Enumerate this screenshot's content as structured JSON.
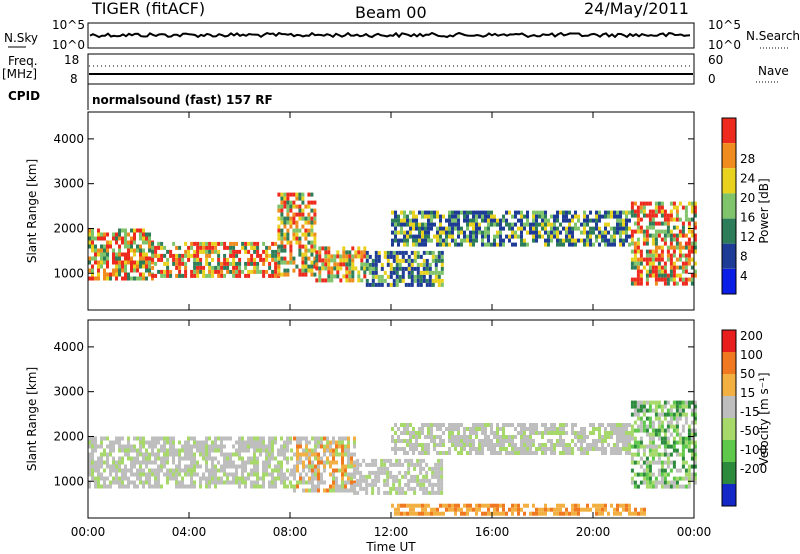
{
  "header": {
    "radar": "TIGER (fitACF)",
    "beam": "Beam 00",
    "date": "24/May/2011"
  },
  "top_panels": {
    "nsky_label": "N.Sky",
    "nsky_ticks": [
      "10^5",
      "10^0"
    ],
    "nsearch_label": "N.Search",
    "nsearch_ticks": [
      "10^5",
      "10^0"
    ],
    "freq_label": "Freq.",
    "freq_unit": "[MHz]",
    "freq_ticks": [
      "18",
      "8"
    ],
    "nave_label": "Nave",
    "nave_ticks": [
      "60",
      "0"
    ],
    "cpid_label": "CPID",
    "cpid_text": "normalsound (fast) 157 RF"
  },
  "chart_data": [
    {
      "type": "heatmap",
      "panel": "power",
      "ylabel": "Slant Range [km]",
      "y_ticks": [
        "1000",
        "2000",
        "3000",
        "4000"
      ],
      "ylim": [
        180,
        4600
      ],
      "x_ticks": [
        "00:00",
        "04:00",
        "08:00",
        "12:00",
        "16:00",
        "20:00",
        "00:00"
      ],
      "xlim": [
        0,
        24
      ],
      "colorbar": {
        "label": "Power [dB]",
        "ticks": [
          "4",
          "8",
          "12",
          "16",
          "20",
          "24",
          "28"
        ],
        "colors": [
          "#0a1ee6",
          "#1e3c96",
          "#2e7d5a",
          "#7fc46a",
          "#e9d21e",
          "#f08c1e",
          "#ee2a1e"
        ]
      },
      "regions": [
        {
          "t0": 0.0,
          "t1": 2.5,
          "r0": 900,
          "r1": 2000,
          "level": "high"
        },
        {
          "t0": 2.5,
          "t1": 7.5,
          "r0": 900,
          "r1": 1700,
          "level": "high"
        },
        {
          "t0": 7.5,
          "t1": 9.0,
          "r0": 1000,
          "r1": 2800,
          "level": "mid"
        },
        {
          "t0": 9.0,
          "t1": 11.0,
          "r0": 800,
          "r1": 1600,
          "level": "mid"
        },
        {
          "t0": 11.0,
          "t1": 14.0,
          "r0": 700,
          "r1": 1500,
          "level": "low"
        },
        {
          "t0": 12.0,
          "t1": 21.5,
          "r0": 1600,
          "r1": 2400,
          "level": "low"
        },
        {
          "t0": 21.5,
          "t1": 24.0,
          "r0": 800,
          "r1": 2600,
          "level": "high"
        }
      ]
    },
    {
      "type": "heatmap",
      "panel": "velocity",
      "ylabel": "Slant Range [km]",
      "y_ticks": [
        "1000",
        "2000",
        "3000",
        "4000"
      ],
      "ylim": [
        180,
        4600
      ],
      "x_ticks": [
        "00:00",
        "04:00",
        "08:00",
        "12:00",
        "16:00",
        "20:00",
        "00:00"
      ],
      "xlabel": "Time UT",
      "xlim": [
        0,
        24
      ],
      "colorbar": {
        "label": "Velocity [m s⁻¹]",
        "ticks": [
          "200",
          "100",
          "50",
          "15",
          "-15",
          "-50",
          "-100",
          "-200"
        ],
        "colors": [
          "#1428c8",
          "#2c8a3c",
          "#5ec84a",
          "#a6d96a",
          "#bebebe",
          "#f3b042",
          "#f07820",
          "#e81e1e"
        ]
      },
      "regions": [
        {
          "t0": 0.0,
          "t1": 8.0,
          "r0": 900,
          "r1": 2000,
          "level": "ground"
        },
        {
          "t0": 8.0,
          "t1": 10.5,
          "r0": 800,
          "r1": 2000,
          "level": "mixed"
        },
        {
          "t0": 10.5,
          "t1": 14.0,
          "r0": 700,
          "r1": 1500,
          "level": "ground"
        },
        {
          "t0": 12.0,
          "t1": 21.5,
          "r0": 1600,
          "r1": 2300,
          "level": "ground"
        },
        {
          "t0": 12.0,
          "t1": 22.0,
          "r0": 250,
          "r1": 500,
          "level": "away"
        },
        {
          "t0": 21.5,
          "t1": 24.0,
          "r0": 900,
          "r1": 2800,
          "level": "towards"
        }
      ]
    }
  ]
}
